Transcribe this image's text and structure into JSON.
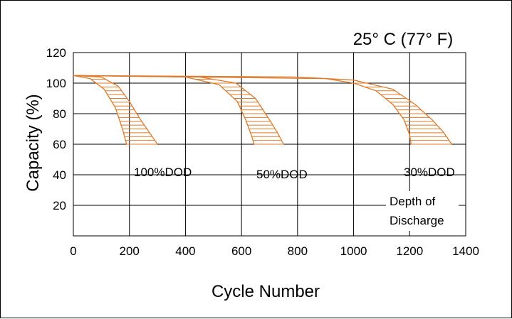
{
  "chart_data": {
    "type": "line",
    "title": "25° C (77° F)",
    "xlabel": "Cycle Number",
    "ylabel": "Capacity (%)",
    "xlim": [
      0,
      1400
    ],
    "ylim": [
      0,
      120
    ],
    "x_ticks": [
      "0",
      "200",
      "400",
      "600",
      "800",
      "1000",
      "1200",
      "1400"
    ],
    "y_ticks": [
      "20",
      "40",
      "60",
      "80",
      "100",
      "120"
    ],
    "grid": true,
    "legend_title": [
      "Depth of",
      "Discharge"
    ],
    "line_color": "#e07a28",
    "series": [
      {
        "name": "100%DOD",
        "upper": [
          [
            0,
            105
          ],
          [
            100,
            104
          ],
          [
            160,
            98
          ],
          [
            200,
            88
          ],
          [
            240,
            76
          ],
          [
            270,
            68
          ],
          [
            300,
            60
          ]
        ],
        "lower": [
          [
            0,
            105
          ],
          [
            60,
            103
          ],
          [
            110,
            96
          ],
          [
            150,
            84
          ],
          [
            175,
            70
          ],
          [
            190,
            60
          ]
        ]
      },
      {
        "name": "50%DOD",
        "upper": [
          [
            0,
            105
          ],
          [
            450,
            104
          ],
          [
            580,
            100
          ],
          [
            650,
            90
          ],
          [
            700,
            76
          ],
          [
            730,
            67
          ],
          [
            750,
            60
          ]
        ],
        "lower": [
          [
            0,
            105
          ],
          [
            400,
            104
          ],
          [
            520,
            99
          ],
          [
            585,
            88
          ],
          [
            615,
            76
          ],
          [
            635,
            66
          ],
          [
            645,
            60
          ]
        ]
      },
      {
        "name": "30%DOD",
        "upper": [
          [
            0,
            105
          ],
          [
            800,
            104
          ],
          [
            1000,
            102
          ],
          [
            1140,
            96
          ],
          [
            1220,
            86
          ],
          [
            1280,
            76
          ],
          [
            1320,
            68
          ],
          [
            1350,
            60
          ]
        ],
        "lower": [
          [
            0,
            105
          ],
          [
            900,
            103
          ],
          [
            1000,
            100
          ],
          [
            1080,
            95
          ],
          [
            1140,
            86
          ],
          [
            1180,
            76
          ],
          [
            1200,
            66
          ],
          [
            1205,
            60
          ]
        ]
      }
    ]
  }
}
